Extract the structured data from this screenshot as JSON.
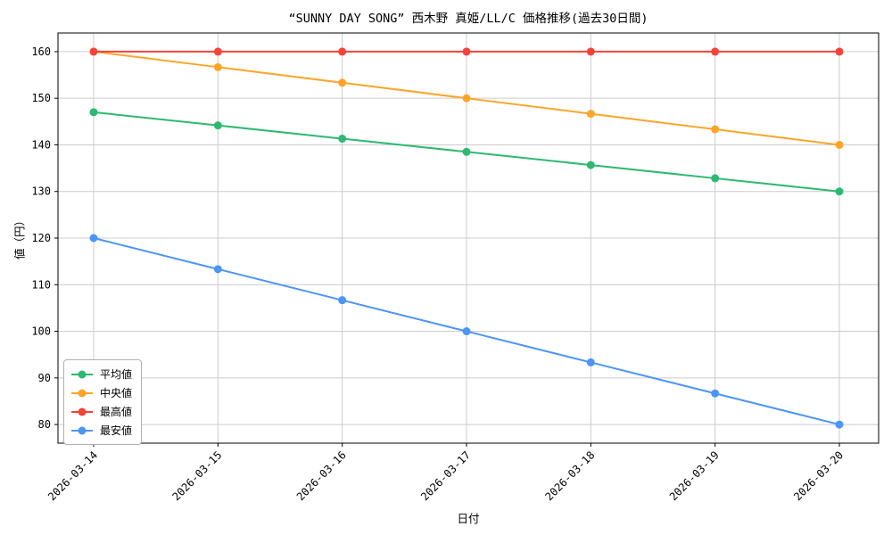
{
  "chart_data": {
    "type": "line",
    "title": "“SUNNY DAY SONG” 西木野 真姫/LL/C 価格推移(過去30日間)",
    "xlabel": "日付",
    "ylabel": "値（円）",
    "x": [
      "2026-03-14",
      "2026-03-15",
      "2026-03-16",
      "2026-03-17",
      "2026-03-18",
      "2026-03-19",
      "2026-03-20"
    ],
    "yticks": [
      80,
      90,
      100,
      110,
      120,
      130,
      140,
      150,
      160
    ],
    "ylim": [
      76,
      164
    ],
    "grid": true,
    "legend_position": "lower left",
    "series": [
      {
        "name": "平均値",
        "color": "#2eb872",
        "values": [
          147,
          144.17,
          141.33,
          138.5,
          135.67,
          132.83,
          130
        ]
      },
      {
        "name": "中央値",
        "color": "#ffa427",
        "values": [
          160,
          156.67,
          153.33,
          150,
          146.67,
          143.33,
          140
        ]
      },
      {
        "name": "最高値",
        "color": "#f4433a",
        "values": [
          160,
          160,
          160,
          160,
          160,
          160,
          160
        ]
      },
      {
        "name": "最安値",
        "color": "#4d94f7",
        "values": [
          120,
          113.33,
          106.67,
          100,
          93.33,
          86.67,
          80
        ]
      }
    ],
    "colors": {
      "grid": "#cccccc",
      "spine": "#000000",
      "background": "#ffffff"
    }
  }
}
